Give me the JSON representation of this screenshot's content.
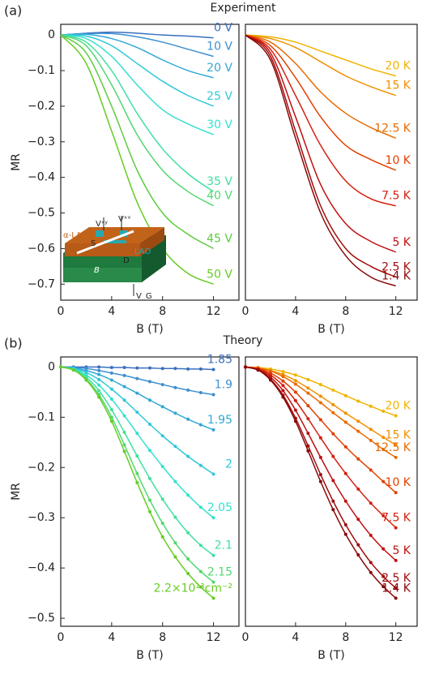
{
  "chart_data": [
    {
      "type": "line",
      "panel_label": "(a)",
      "title": "Experiment",
      "y_label": "MR",
      "x_label": "B (T)",
      "xlim": [
        0,
        14
      ],
      "ylim": [
        -0.745,
        0.03
      ],
      "xticks": [
        0,
        4,
        8,
        12
      ],
      "yticks": [
        0,
        {
          "value": -0.1,
          "label": "−0.1"
        },
        {
          "value": -0.2,
          "label": "−0.2"
        },
        {
          "value": -0.3,
          "label": "−0.3"
        },
        {
          "value": -0.4,
          "label": "−0.4"
        },
        {
          "value": -0.5,
          "label": "−0.5"
        },
        {
          "value": -0.6,
          "label": "−0.6"
        },
        {
          "value": -0.7,
          "label": "−0.7"
        }
      ],
      "x": [
        0,
        2,
        4,
        6,
        8,
        10,
        12
      ],
      "series": [
        {
          "name": "0 V",
          "color": "#3a6fc0",
          "values": [
            0,
            0.005,
            0.008,
            0.005,
            0,
            -0.003,
            -0.008
          ]
        },
        {
          "name": "10 V",
          "color": "#3d8fd0",
          "values": [
            0,
            0.004,
            0.004,
            -0.005,
            -0.02,
            -0.04,
            -0.06
          ]
        },
        {
          "name": "20 V",
          "color": "#32a8d4",
          "values": [
            0,
            0.002,
            -0.01,
            -0.035,
            -0.07,
            -0.1,
            -0.12
          ]
        },
        {
          "name": "25 V",
          "color": "#30c8d8",
          "values": [
            0,
            -0.003,
            -0.03,
            -0.08,
            -0.13,
            -0.17,
            -0.2
          ]
        },
        {
          "name": "30 V",
          "color": "#35e0d0",
          "values": [
            0,
            -0.01,
            -0.06,
            -0.14,
            -0.21,
            -0.25,
            -0.28
          ]
        },
        {
          "name": "35 V",
          "color": "#40e0a0",
          "values": [
            0,
            -0.02,
            -0.1,
            -0.22,
            -0.32,
            -0.39,
            -0.44
          ]
        },
        {
          "name": "40 V",
          "color": "#50d870",
          "values": [
            0,
            -0.03,
            -0.14,
            -0.28,
            -0.38,
            -0.44,
            -0.48
          ]
        },
        {
          "name": "45 V",
          "color": "#5ccc40",
          "values": [
            0,
            -0.05,
            -0.2,
            -0.38,
            -0.5,
            -0.56,
            -0.6
          ]
        },
        {
          "name": "50 V",
          "color": "#66cc22",
          "values": [
            0,
            -0.08,
            -0.27,
            -0.47,
            -0.6,
            -0.67,
            -0.7
          ]
        }
      ]
    },
    {
      "type": "line",
      "x_label": "B (T)",
      "xlim": [
        0,
        13.7
      ],
      "ylim": [
        -0.745,
        0.03
      ],
      "xticks": [
        0,
        4,
        8,
        12
      ],
      "x": [
        0,
        2,
        4,
        6,
        8,
        10,
        12
      ],
      "series": [
        {
          "name": "20 K",
          "color": "#f0b400",
          "values": [
            0,
            -0.005,
            -0.02,
            -0.045,
            -0.07,
            -0.095,
            -0.115
          ]
        },
        {
          "name": "15 K",
          "color": "#f09000",
          "values": [
            0,
            -0.01,
            -0.035,
            -0.075,
            -0.115,
            -0.145,
            -0.17
          ]
        },
        {
          "name": "12.5 K",
          "color": "#e86a00",
          "values": [
            0,
            -0.02,
            -0.08,
            -0.16,
            -0.22,
            -0.26,
            -0.29
          ]
        },
        {
          "name": "10 K",
          "color": "#e04000",
          "values": [
            0,
            -0.03,
            -0.12,
            -0.23,
            -0.31,
            -0.35,
            -0.38
          ]
        },
        {
          "name": "7.5 K",
          "color": "#d42010",
          "values": [
            0,
            -0.04,
            -0.17,
            -0.31,
            -0.41,
            -0.46,
            -0.48
          ]
        },
        {
          "name": "5 K",
          "color": "#c01010",
          "values": [
            0,
            -0.05,
            -0.23,
            -0.42,
            -0.53,
            -0.58,
            -0.61
          ]
        },
        {
          "name": "2.5 K",
          "color": "#a00c0c",
          "values": [
            0,
            -0.06,
            -0.27,
            -0.48,
            -0.6,
            -0.65,
            -0.68
          ]
        },
        {
          "name": "1.4 K",
          "color": "#8a0808",
          "values": [
            0,
            -0.07,
            -0.29,
            -0.5,
            -0.62,
            -0.68,
            -0.705
          ]
        }
      ]
    },
    {
      "type": "line",
      "markers": true,
      "panel_label": "(b)",
      "title": "Theory",
      "y_label": "MR",
      "x_label": "B (T)",
      "xlim": [
        0,
        14
      ],
      "ylim": [
        -0.516,
        0.02
      ],
      "xticks": [
        0,
        4,
        8,
        12
      ],
      "yticks": [
        0,
        {
          "value": -0.1,
          "label": "−0.1"
        },
        {
          "value": -0.2,
          "label": "−0.2"
        },
        {
          "value": -0.3,
          "label": "−0.3"
        },
        {
          "value": -0.4,
          "label": "−0.4"
        },
        {
          "value": -0.5,
          "label": "−0.5"
        }
      ],
      "x": [
        0,
        1,
        2,
        3,
        4,
        5,
        6,
        7,
        8,
        9,
        10,
        11,
        12
      ],
      "series": [
        {
          "name": "1.85",
          "color": "#3a6fc0",
          "values": [
            0,
            0,
            0,
            0,
            -0.001,
            -0.001,
            -0.002,
            -0.002,
            -0.003,
            -0.003,
            -0.004,
            -0.004,
            -0.005
          ]
        },
        {
          "name": "1.9",
          "color": "#3d8fd0",
          "values": [
            0,
            -0.001,
            -0.003,
            -0.007,
            -0.012,
            -0.017,
            -0.023,
            -0.029,
            -0.035,
            -0.041,
            -0.046,
            -0.051,
            -0.055
          ]
        },
        {
          "name": "1.95",
          "color": "#32a8d4",
          "values": [
            0,
            -0.002,
            -0.007,
            -0.015,
            -0.026,
            -0.039,
            -0.052,
            -0.066,
            -0.079,
            -0.092,
            -0.104,
            -0.115,
            -0.125
          ]
        },
        {
          "name": "2",
          "color": "#30c8d8",
          "values": [
            0,
            -0.003,
            -0.011,
            -0.025,
            -0.044,
            -0.066,
            -0.09,
            -0.114,
            -0.137,
            -0.158,
            -0.178,
            -0.196,
            -0.213
          ]
        },
        {
          "name": "2.05",
          "color": "#35e0d0",
          "values": [
            0,
            -0.004,
            -0.016,
            -0.036,
            -0.064,
            -0.097,
            -0.132,
            -0.166,
            -0.198,
            -0.228,
            -0.255,
            -0.279,
            -0.3
          ]
        },
        {
          "name": "2.1",
          "color": "#40e0a0",
          "values": [
            0,
            -0.005,
            -0.02,
            -0.047,
            -0.085,
            -0.13,
            -0.177,
            -0.222,
            -0.263,
            -0.299,
            -0.33,
            -0.355,
            -0.375
          ]
        },
        {
          "name": "2.15",
          "color": "#50d870",
          "values": [
            0,
            -0.006,
            -0.024,
            -0.055,
            -0.1,
            -0.155,
            -0.212,
            -0.265,
            -0.311,
            -0.35,
            -0.382,
            -0.407,
            -0.428
          ]
        },
        {
          "name": "2.2×10¹³cm⁻²",
          "color": "#66cc22",
          "values": [
            0,
            -0.006,
            -0.026,
            -0.06,
            -0.108,
            -0.168,
            -0.23,
            -0.288,
            -0.338,
            -0.378,
            -0.411,
            -0.438,
            -0.46
          ]
        }
      ]
    },
    {
      "type": "line",
      "markers": true,
      "x_label": "B (T)",
      "xlim": [
        0,
        13.7
      ],
      "ylim": [
        -0.516,
        0.02
      ],
      "xticks": [
        0,
        4,
        8,
        12
      ],
      "x": [
        0,
        1,
        2,
        3,
        4,
        5,
        6,
        7,
        8,
        9,
        10,
        11,
        12
      ],
      "series": [
        {
          "name": "20 K",
          "color": "#f0b400",
          "values": [
            0,
            -0.001,
            -0.004,
            -0.009,
            -0.016,
            -0.025,
            -0.035,
            -0.046,
            -0.057,
            -0.068,
            -0.078,
            -0.088,
            -0.097
          ]
        },
        {
          "name": "15 K",
          "color": "#f09000",
          "values": [
            0,
            -0.002,
            -0.007,
            -0.015,
            -0.027,
            -0.042,
            -0.058,
            -0.075,
            -0.092,
            -0.108,
            -0.124,
            -0.14,
            -0.155
          ]
        },
        {
          "name": "12.5 K",
          "color": "#e86a00",
          "values": [
            0,
            -0.002,
            -0.008,
            -0.019,
            -0.034,
            -0.052,
            -0.071,
            -0.091,
            -0.11,
            -0.128,
            -0.146,
            -0.164,
            -0.18
          ]
        },
        {
          "name": "10 K",
          "color": "#e04000",
          "values": [
            0,
            -0.003,
            -0.012,
            -0.028,
            -0.05,
            -0.077,
            -0.105,
            -0.133,
            -0.159,
            -0.183,
            -0.205,
            -0.228,
            -0.25
          ]
        },
        {
          "name": "7.5 K",
          "color": "#d42010",
          "values": [
            0,
            -0.004,
            -0.016,
            -0.037,
            -0.067,
            -0.103,
            -0.141,
            -0.178,
            -0.212,
            -0.243,
            -0.271,
            -0.296,
            -0.32
          ]
        },
        {
          "name": "5 K",
          "color": "#c01010",
          "values": [
            0,
            -0.005,
            -0.02,
            -0.047,
            -0.086,
            -0.132,
            -0.18,
            -0.226,
            -0.267,
            -0.303,
            -0.335,
            -0.362,
            -0.385
          ]
        },
        {
          "name": "2.5 K",
          "color": "#a00c0c",
          "values": [
            0,
            -0.006,
            -0.024,
            -0.056,
            -0.102,
            -0.157,
            -0.214,
            -0.267,
            -0.314,
            -0.354,
            -0.389,
            -0.417,
            -0.44
          ]
        },
        {
          "name": "1.4 K",
          "color": "#8a0808",
          "values": [
            0,
            -0.006,
            -0.026,
            -0.06,
            -0.108,
            -0.167,
            -0.228,
            -0.284,
            -0.333,
            -0.374,
            -0.409,
            -0.437,
            -0.46
          ]
        }
      ]
    }
  ],
  "inset": {
    "top_layer": "α-LAO",
    "layer": "LAO",
    "substrate": "STO",
    "source": "S",
    "drain": "D",
    "field": "B",
    "v_xy": "Vˣʸ",
    "v_xx": "Vˣˣ",
    "v_g": "V_G"
  }
}
